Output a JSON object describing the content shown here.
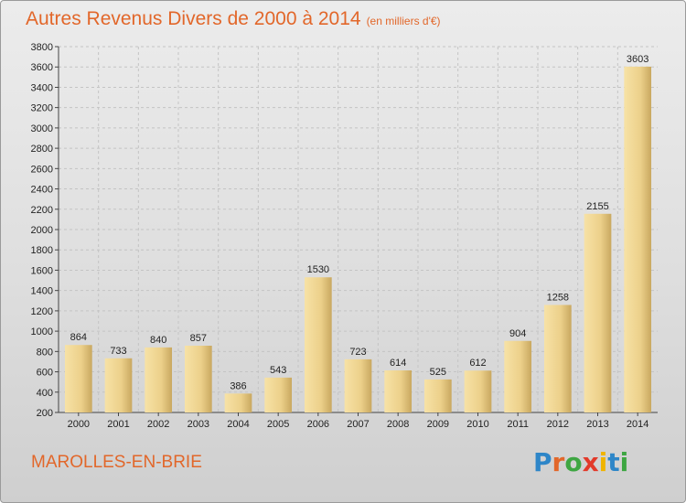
{
  "header": {
    "title": "Autres Revenus Divers de 2000 à 2014",
    "unit": "(en milliers d'€)"
  },
  "footer": {
    "town": "MAROLLES-EN-BRIE",
    "logo_letters": [
      "P",
      "r",
      "o",
      "x",
      "i",
      "t",
      "i"
    ],
    "logo_colors": [
      "#2e86c8",
      "#e2672a",
      "#3ea642",
      "#e23a2a",
      "#f0b400",
      "#2e86c8",
      "#3ea642"
    ]
  },
  "colors": {
    "accent": "#e2672a",
    "bar_light": "#f5dc96",
    "bar_dark": "#c9a860"
  },
  "chart_data": {
    "type": "bar",
    "title": "Autres Revenus Divers de 2000 à 2014",
    "subtitle": "(en milliers d'€)",
    "xlabel": "",
    "ylabel": "",
    "categories": [
      "2000",
      "2001",
      "2002",
      "2003",
      "2004",
      "2005",
      "2006",
      "2007",
      "2008",
      "2009",
      "2010",
      "2011",
      "2012",
      "2013",
      "2014"
    ],
    "values": [
      864,
      733,
      840,
      857,
      386,
      543,
      1530,
      723,
      614,
      525,
      612,
      904,
      1258,
      2155,
      3603
    ],
    "ylim": [
      200,
      3800
    ],
    "yticks": [
      200,
      400,
      600,
      800,
      1000,
      1200,
      1400,
      1600,
      1800,
      2000,
      2200,
      2400,
      2600,
      2800,
      3000,
      3200,
      3400,
      3600,
      3800
    ],
    "grid": true,
    "data_labels": true
  }
}
